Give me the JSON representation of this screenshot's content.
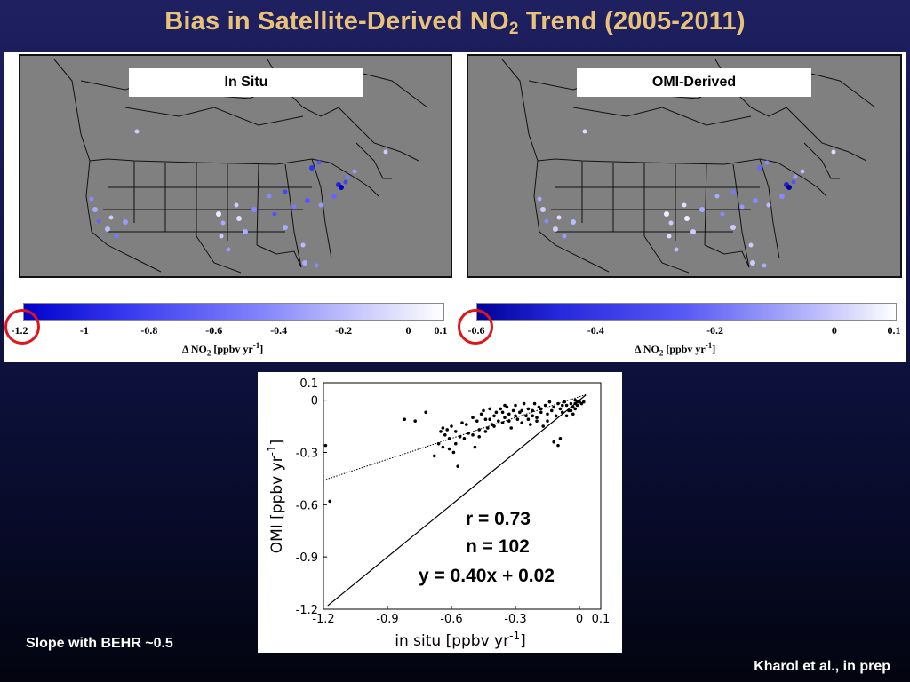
{
  "slide": {
    "title_main": "Bias in Satellite-Derived NO",
    "title_sub": "2",
    "title_tail": " Trend (2005-2011)",
    "note_left": "Slope with BEHR ~0.5",
    "note_right": "Kharol et al., in prep"
  },
  "maps": {
    "left_label": "In Situ",
    "right_label": "OMI-Derived",
    "caption_main": "Δ NO",
    "caption_sub": "2",
    "caption_units": " [ppbv yr",
    "caption_exp": "-1",
    "caption_close": "]",
    "left_ticks": [
      "-1.2",
      "-1",
      "-0.8",
      "-0.6",
      "-0.4",
      "-0.2",
      "0",
      "0.1"
    ],
    "left_tick_values": [
      -1.2,
      -1,
      -0.8,
      -0.6,
      -0.4,
      -0.2,
      0,
      0.1
    ],
    "right_ticks": [
      "-0.6",
      "-0.4",
      "-0.2",
      "0",
      "0.1"
    ],
    "right_tick_values": [
      -0.6,
      -0.4,
      -0.2,
      0,
      0.1
    ],
    "colors": {
      "land": "#808080",
      "border": "#111111",
      "dark": "#0000cc",
      "light": "#ffffff",
      "circle": "#e0151b"
    }
  },
  "chart_data": {
    "type": "scatter",
    "xlabel": "in situ [ppbv yr-1]",
    "ylabel": "OMI [ppbv yr-1]",
    "xlim": [
      -1.2,
      0.1
    ],
    "ylim": [
      -1.2,
      0.1
    ],
    "xticks": [
      "-1.2",
      "-0.9",
      "-0.6",
      "-0.3",
      "0",
      "0.1"
    ],
    "yticks": [
      "0.1",
      "0",
      "-0.3",
      "-0.6",
      "-0.9",
      "-1.2"
    ],
    "stats": {
      "r": "r = 0.73",
      "n": "n = 102",
      "fit": "y = 0.40x + 0.02"
    },
    "fit_line": {
      "slope": 0.4,
      "intercept": 0.02,
      "x_range": [
        -1.2,
        0.03
      ],
      "style": "dotted"
    },
    "one_to_one_line": {
      "x_range": [
        -1.18,
        0.03
      ]
    },
    "points": [
      [
        -1.19,
        -0.26
      ],
      [
        -1.17,
        -0.58
      ],
      [
        -0.82,
        -0.11
      ],
      [
        -0.77,
        -0.12
      ],
      [
        -0.72,
        -0.07
      ],
      [
        -0.68,
        -0.32
      ],
      [
        -0.66,
        -0.25
      ],
      [
        -0.65,
        -0.18
      ],
      [
        -0.64,
        -0.16
      ],
      [
        -0.63,
        -0.2
      ],
      [
        -0.62,
        -0.17
      ],
      [
        -0.61,
        -0.22
      ],
      [
        -0.6,
        -0.15
      ],
      [
        -0.59,
        -0.3
      ],
      [
        -0.58,
        -0.25
      ],
      [
        -0.57,
        -0.38
      ],
      [
        -0.55,
        -0.13
      ],
      [
        -0.54,
        -0.22
      ],
      [
        -0.52,
        -0.19
      ],
      [
        -0.5,
        -0.1
      ],
      [
        -0.49,
        -0.27
      ],
      [
        -0.48,
        -0.12
      ],
      [
        -0.47,
        -0.21
      ],
      [
        -0.46,
        -0.08
      ],
      [
        -0.45,
        -0.06
      ],
      [
        -0.44,
        -0.18
      ],
      [
        -0.43,
        -0.16
      ],
      [
        -0.42,
        -0.11
      ],
      [
        -0.41,
        -0.14
      ],
      [
        -0.4,
        -0.09
      ],
      [
        -0.39,
        -0.07
      ],
      [
        -0.38,
        -0.12
      ],
      [
        -0.37,
        -0.05
      ],
      [
        -0.36,
        -0.13
      ],
      [
        -0.35,
        -0.1
      ],
      [
        -0.34,
        -0.04
      ],
      [
        -0.33,
        -0.08
      ],
      [
        -0.32,
        -0.16
      ],
      [
        -0.31,
        -0.06
      ],
      [
        -0.3,
        -0.03
      ],
      [
        -0.29,
        -0.11
      ],
      [
        -0.28,
        -0.07
      ],
      [
        -0.27,
        -0.13
      ],
      [
        -0.26,
        -0.02
      ],
      [
        -0.25,
        -0.09
      ],
      [
        -0.24,
        -0.05
      ],
      [
        -0.23,
        -0.14
      ],
      [
        -0.22,
        -0.06
      ],
      [
        -0.21,
        -0.02
      ],
      [
        -0.2,
        -0.1
      ],
      [
        -0.19,
        -0.04
      ],
      [
        -0.18,
        -0.07
      ],
      [
        -0.17,
        -0.15
      ],
      [
        -0.16,
        -0.03
      ],
      [
        -0.15,
        -0.08
      ],
      [
        -0.14,
        -0.01
      ],
      [
        -0.13,
        -0.06
      ],
      [
        -0.12,
        -0.04
      ],
      [
        -0.11,
        -0.09
      ],
      [
        -0.1,
        -0.02
      ],
      [
        -0.09,
        -0.05
      ],
      [
        -0.08,
        -0.07
      ],
      [
        -0.07,
        -0.01
      ],
      [
        -0.06,
        -0.03
      ],
      [
        -0.05,
        -0.06
      ],
      [
        -0.04,
        -0.02
      ],
      [
        -0.03,
        -0.04
      ],
      [
        -0.02,
        0.0
      ],
      [
        -0.01,
        -0.03
      ],
      [
        0.0,
        -0.01
      ],
      [
        0.01,
        -0.02
      ],
      [
        0.02,
        -0.01
      ],
      [
        -0.02,
        -0.05
      ],
      [
        -0.06,
        -0.09
      ],
      [
        -0.12,
        -0.24
      ],
      [
        -0.1,
        -0.26
      ],
      [
        -0.09,
        -0.22
      ],
      [
        -0.2,
        -0.12
      ],
      [
        -0.27,
        -0.06
      ],
      [
        -0.33,
        -0.12
      ],
      [
        -0.4,
        -0.15
      ],
      [
        -0.47,
        -0.17
      ],
      [
        -0.53,
        -0.14
      ],
      [
        -0.58,
        -0.18
      ],
      [
        -0.61,
        -0.28
      ],
      [
        -0.44,
        -0.11
      ],
      [
        -0.36,
        -0.07
      ],
      [
        -0.3,
        -0.09
      ],
      [
        -0.24,
        -0.11
      ],
      [
        -0.18,
        -0.05
      ],
      [
        -0.15,
        -0.12
      ],
      [
        -0.08,
        -0.03
      ],
      [
        -0.04,
        -0.06
      ],
      [
        -0.01,
        -0.01
      ],
      [
        -0.03,
        -0.08
      ],
      [
        -0.22,
        -0.09
      ],
      [
        -0.35,
        -0.03
      ],
      [
        -0.42,
        -0.05
      ],
      [
        -0.5,
        -0.2
      ],
      [
        -0.56,
        -0.21
      ],
      [
        -0.64,
        -0.27
      ],
      [
        -0.02,
        -0.02
      ]
    ]
  }
}
